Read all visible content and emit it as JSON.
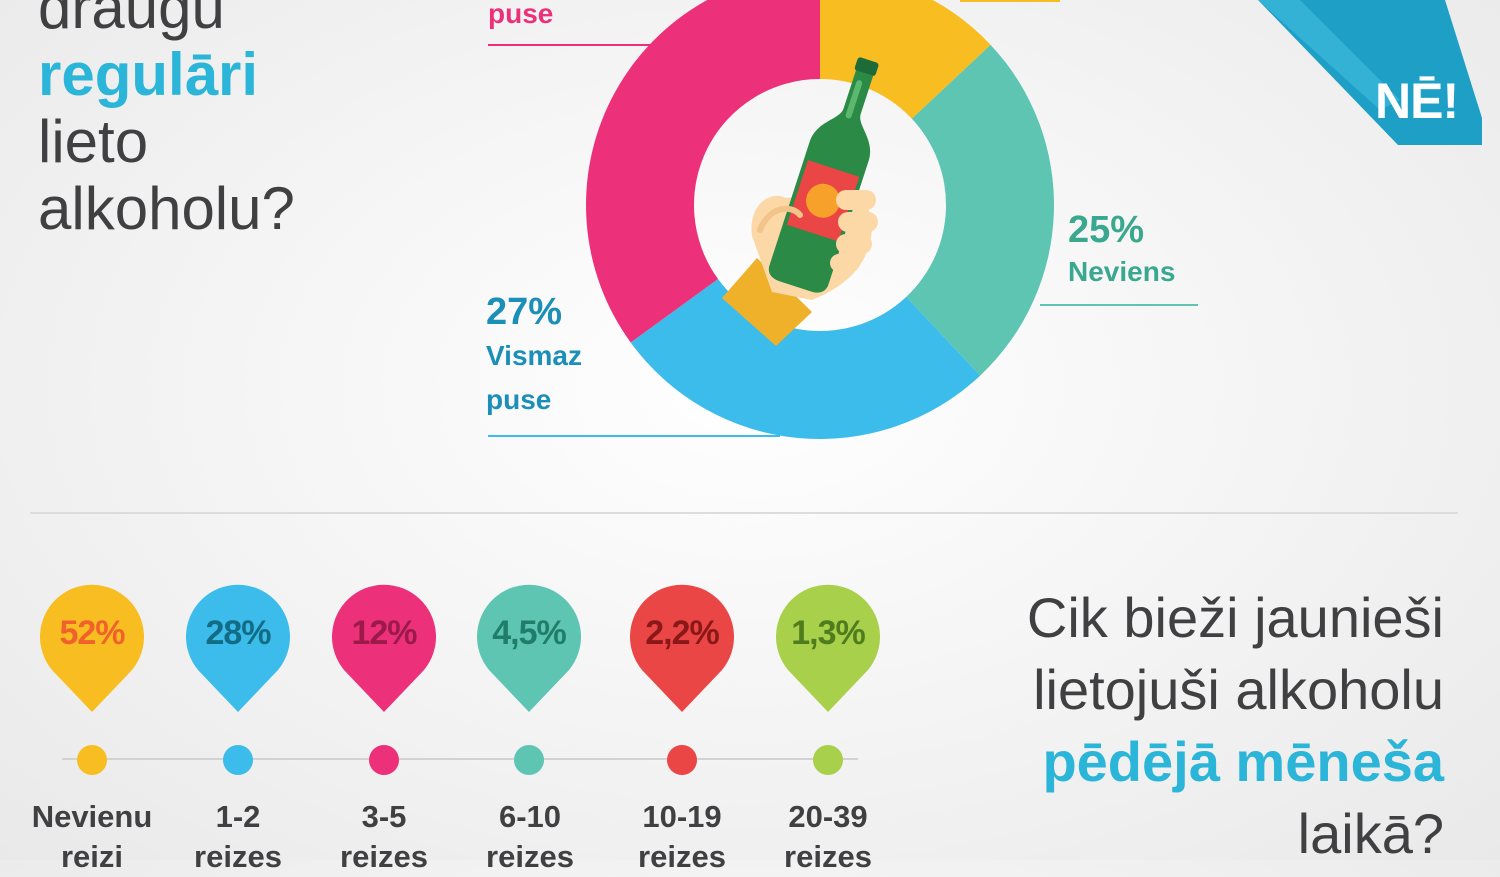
{
  "question_top": {
    "line1": "draugu",
    "line2": "regulāri",
    "line3": "lieto",
    "line4": "alkoholu?"
  },
  "chart_data": [
    {
      "type": "pie",
      "title": "",
      "slices": [
        {
          "label": "",
          "value": 13,
          "color": "#f7bd21"
        },
        {
          "label": "Neviens",
          "value": 25,
          "display": "25%",
          "color": "#5ec5b3"
        },
        {
          "label": "Vismaz puse",
          "value": 27,
          "display": "27%",
          "color": "#3cbcea"
        },
        {
          "label": "puse",
          "value": 35,
          "color": "#ec317a"
        }
      ]
    },
    {
      "type": "bar",
      "title": "Cik bieži jaunieši lietojuši alkoholu pēdējā mēneša laikā?",
      "categories": [
        "Nevienu reizi",
        "1-2 reizes",
        "3-5 reizes",
        "6-10 reizes",
        "10-19 reizes",
        "20-39 reizes"
      ],
      "values": [
        52,
        28,
        12,
        4.5,
        2.2,
        1.3
      ],
      "value_labels": [
        "52%",
        "28%",
        "12%",
        "4,5%",
        "2,2%",
        "1,3%"
      ],
      "colors": [
        "#f7bd21",
        "#3cbcea",
        "#ec317a",
        "#5ec5b3",
        "#ea4646",
        "#a9d04b"
      ],
      "text_colors": [
        "#f0612b",
        "#136c86",
        "#9c1a4a",
        "#1f7d6a",
        "#8a1818",
        "#4f7d1e"
      ]
    }
  ],
  "labels": {
    "top_left": "puse",
    "right_pct": "25%",
    "right_txt": "Neviens",
    "left_pct": "27%",
    "left_txt1": "Vismaz",
    "left_txt2": "puse"
  },
  "brand": "NĒ!",
  "categories": {
    "c0_l1": "Nevienu",
    "c0_l2": "reizi",
    "c1_l1": "1-2",
    "c1_l2": "reizes",
    "c2_l1": "3-5",
    "c2_l2": "reizes",
    "c3_l1": "6-10",
    "c3_l2": "reizes",
    "c4_l1": "10-19",
    "c4_l2": "reizes",
    "c5_l1": "20-39",
    "c5_l2": "reizes"
  },
  "question_bottom": {
    "line1": "Cik bieži jaunieši",
    "line2": "lietojuši alkoholu",
    "line3": "pēdējā mēneša",
    "line4": "laikā?"
  },
  "colors": {
    "accent": "#2bb5d8",
    "text": "#404042",
    "pink": "#ec317a",
    "teal": "#5ec5b3",
    "blue": "#3cbcea",
    "yellow": "#f7bd21"
  },
  "icons": {
    "illustration": "hand-holding-bottle-icon",
    "logo": "ne-logo"
  }
}
